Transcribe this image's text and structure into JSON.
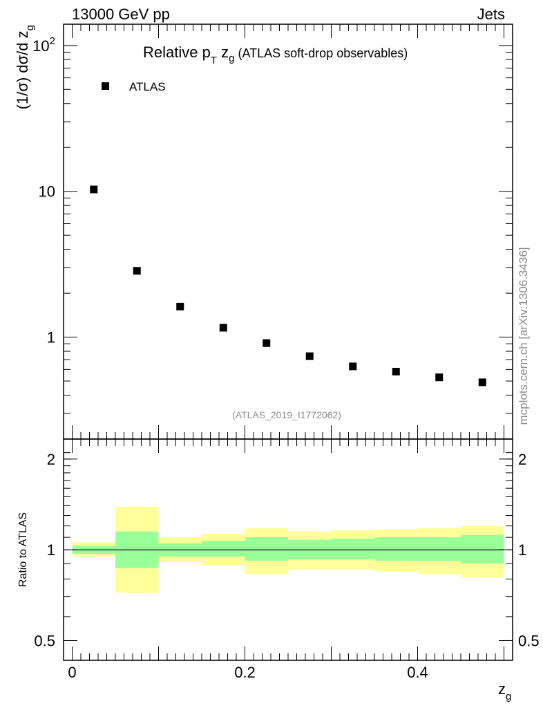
{
  "header": {
    "left": "13000 GeV pp",
    "right": "Jets"
  },
  "side_label": "mcplots.cern.ch [arXiv:1306.3436]",
  "analysis_tag": "(ATLAS_2019_I1772062)",
  "chart_data": [
    {
      "type": "scatter",
      "title": "Relative p_T z_g (ATLAS soft-drop observables)",
      "title_parts": {
        "main": "Relative p",
        "sub1": "T",
        "mid": " z",
        "sub2": "g",
        "tail": " (ATLAS soft-drop observables)"
      },
      "ylabel": "(1/σ) dσ/d z_g",
      "ylabel_parts": {
        "main": "(1/σ) dσ/d z",
        "sub": "g"
      },
      "xlabel": "z_g",
      "xlim": [
        -0.01,
        0.51
      ],
      "ylim": [
        0.2,
        140
      ],
      "yscale": "log",
      "yticks": [
        {
          "value": 100,
          "label": "10",
          "exp": "2"
        },
        {
          "value": 10,
          "label": "10",
          "exp": ""
        },
        {
          "value": 1,
          "label": "1",
          "exp": ""
        }
      ],
      "legend": {
        "placement": "top-left",
        "entries": [
          "ATLAS"
        ]
      },
      "series": [
        {
          "name": "ATLAS",
          "marker": "square",
          "color": "#000000",
          "x": [
            0.025,
            0.075,
            0.125,
            0.175,
            0.225,
            0.275,
            0.325,
            0.375,
            0.425,
            0.475
          ],
          "y": [
            10.3,
            2.85,
            1.62,
            1.16,
            0.91,
            0.74,
            0.63,
            0.58,
            0.53,
            0.49
          ]
        }
      ]
    },
    {
      "type": "area",
      "ylabel": "Ratio to ATLAS",
      "xlabel": "z_g",
      "xlabel_parts": {
        "main": "z",
        "sub": "g"
      },
      "xlim": [
        -0.01,
        0.51
      ],
      "ylim": [
        0.43,
        2.33
      ],
      "yscale": "log",
      "xticks": [
        {
          "value": 0,
          "label": "0"
        },
        {
          "value": 0.2,
          "label": "0.2"
        },
        {
          "value": 0.4,
          "label": "0.4"
        }
      ],
      "yticks": [
        {
          "value": 2,
          "label": "2"
        },
        {
          "value": 1,
          "label": "1"
        },
        {
          "value": 0.5,
          "label": "0.5"
        }
      ],
      "reference_line": 1,
      "bin_edges": [
        0.0,
        0.05,
        0.1,
        0.15,
        0.2,
        0.25,
        0.3,
        0.35,
        0.4,
        0.45,
        0.5
      ],
      "bands": [
        {
          "color": "#ffff99",
          "low": [
            0.95,
            0.72,
            0.91,
            0.89,
            0.83,
            0.86,
            0.86,
            0.85,
            0.83,
            0.81
          ],
          "high": [
            1.06,
            1.39,
            1.1,
            1.13,
            1.18,
            1.15,
            1.16,
            1.17,
            1.18,
            1.2
          ]
        },
        {
          "color": "#99ff99",
          "low": [
            0.97,
            0.87,
            0.95,
            0.95,
            0.92,
            0.93,
            0.93,
            0.92,
            0.92,
            0.9
          ],
          "high": [
            1.03,
            1.15,
            1.05,
            1.07,
            1.1,
            1.08,
            1.09,
            1.1,
            1.1,
            1.12
          ]
        }
      ]
    }
  ]
}
